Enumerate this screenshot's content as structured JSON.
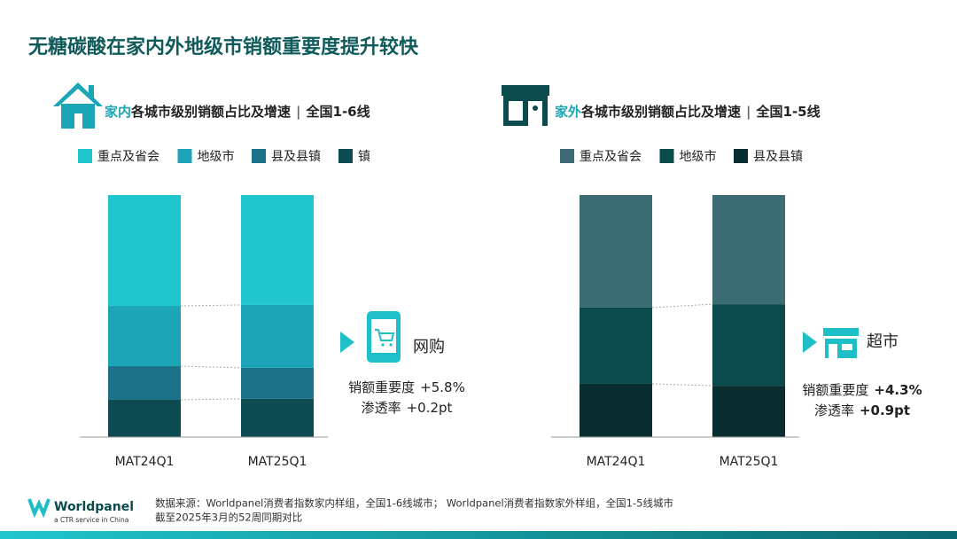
{
  "title": "无糖碳酸在家内外地级市销额重要度提升较快",
  "chart_data": [
    {
      "type": "stacked_bar",
      "subtitle_highlight": "家内",
      "subtitle": "各城市级别销额占比及增速",
      "subtitle_sep": "|",
      "subtitle_scope": "全国1-6线",
      "categories": [
        "MAT24Q1",
        "MAT25Q1"
      ],
      "series": [
        {
          "name": "重点及省会",
          "color": "#20c5cd",
          "values": [
            45.8,
            45.4
          ]
        },
        {
          "name": "地级市",
          "color": "#1ba5b6",
          "values": [
            24.9,
            26.0
          ]
        },
        {
          "name": "县及县镇",
          "color": "#1b7289",
          "values": [
            13.9,
            12.8
          ]
        },
        {
          "name": "镇",
          "color": "#0e4a51",
          "values": [
            15.4,
            15.8
          ]
        }
      ],
      "annotation": {
        "label": "网购",
        "lines": [
          {
            "label": "销额重要度",
            "value": "+5.8%"
          },
          {
            "label": "渗透率",
            "value": "+0.2pt"
          }
        ]
      }
    },
    {
      "type": "stacked_bar",
      "subtitle_highlight": "家外",
      "subtitle": "各城市级别销额占比及增速",
      "subtitle_sep": "|",
      "subtitle_scope": "全国1-5线",
      "categories": [
        "MAT24Q1",
        "MAT25Q1"
      ],
      "series": [
        {
          "name": "重点及省会",
          "color": "#3c6d74",
          "values": [
            46.5,
            45.1
          ]
        },
        {
          "name": "地级市",
          "color": "#0b4a4d",
          "values": [
            31.5,
            33.7
          ]
        },
        {
          "name": "县及县镇",
          "color": "#0a2d30",
          "values": [
            22.0,
            21.2
          ]
        }
      ],
      "annotation": {
        "label": "超市",
        "lines": [
          {
            "label": "销额重要度",
            "value": "+4.3%"
          },
          {
            "label": "渗透率",
            "value": "+0.9pt"
          }
        ]
      }
    }
  ],
  "footer": {
    "brand": "Worldpanel",
    "brand_sub": "a CTR service in China",
    "source": [
      "数据来源：Worldpanel消费者指数家内样组，全国1-6线城市； Worldpanel消费者指数家外样组，全国1-5线城市",
      "截至2025年3月的52周同期对比"
    ]
  }
}
